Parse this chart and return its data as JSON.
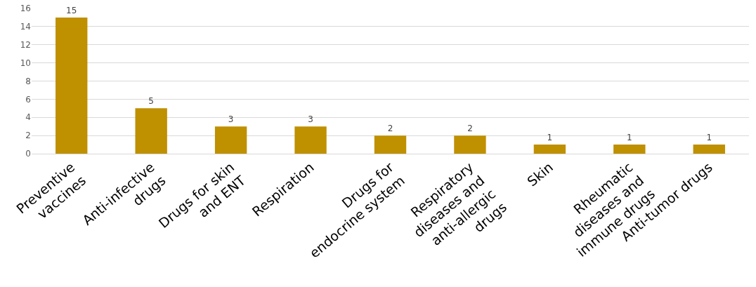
{
  "chart_data": {
    "type": "bar",
    "categories": [
      "Preventive vaccines",
      "Anti-infective drugs",
      "Drugs for skin and ENT",
      "Respiration",
      "Drugs for endocrine system",
      "Respiratory diseases and anti-allergic drugs",
      "Skin",
      "Rheumatic diseases and immune drugs",
      "Anti-tumor drugs"
    ],
    "values": [
      15,
      5,
      3,
      3,
      2,
      2,
      1,
      1,
      1
    ],
    "color": "#bf9000",
    "ylim": [
      0,
      16
    ],
    "yticks": [
      0,
      2,
      4,
      6,
      8,
      10,
      12,
      14,
      16
    ],
    "grid": "y",
    "data_labels": true,
    "legend": false
  }
}
